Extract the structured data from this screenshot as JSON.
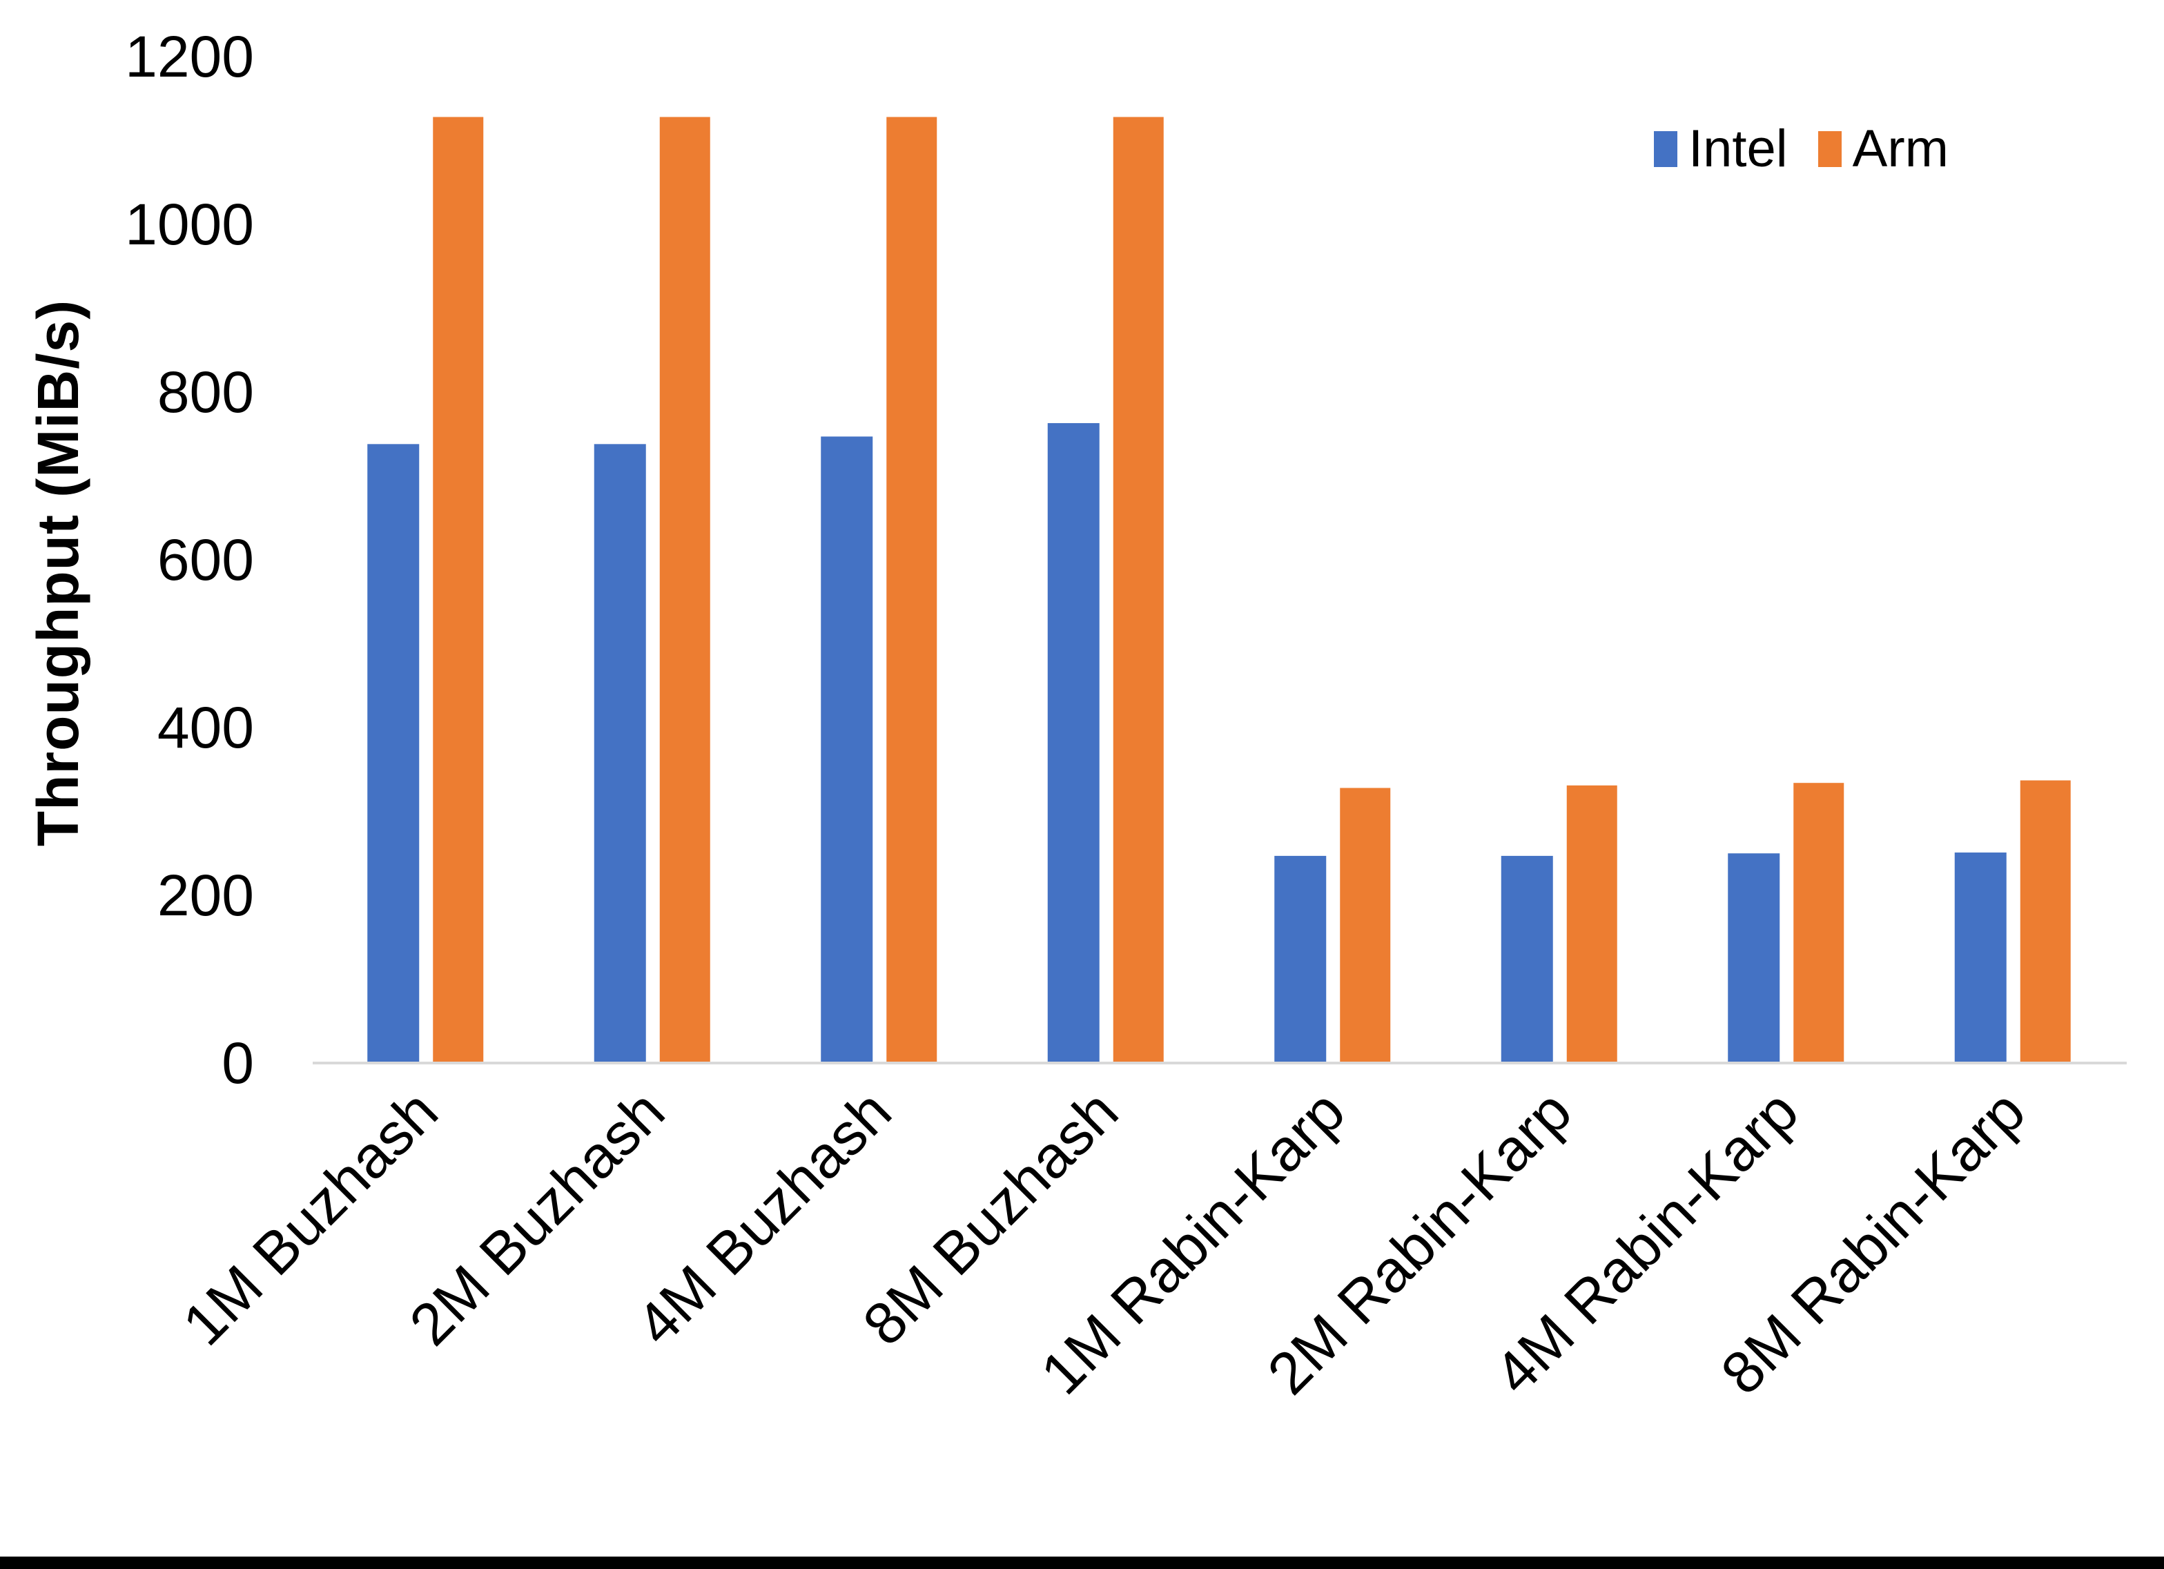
{
  "figure": {
    "background": "#FFFFFF",
    "bottom_border_color": "#000000"
  },
  "axis": {
    "y_title": "Throughput (MiB/s)",
    "y_ticks": [
      "0",
      "200",
      "400",
      "600",
      "800",
      "1000",
      "1200"
    ],
    "axis_line_color": "#D9D9D9",
    "text_color": "#000000"
  },
  "legend": {
    "items": [
      {
        "label": "Intel",
        "color": "#4472C4"
      },
      {
        "label": "Arm",
        "color": "#ED7D31"
      }
    ]
  },
  "chart_data": {
    "type": "bar",
    "title": "",
    "xlabel": "",
    "ylabel": "Throughput (MiB/s)",
    "ylim": [
      0,
      1200
    ],
    "y_step": 200,
    "grid": false,
    "legend_position": "top-right",
    "categories": [
      "1M Buzhash",
      "2M Buzhash",
      "4M Buzhash",
      "8M Buzhash",
      "1M Rabin-Karp",
      "2M Rabin-Karp",
      "4M Rabin-Karp",
      "8M Rabin-Karp"
    ],
    "series": [
      {
        "name": "Intel",
        "color": "#4472C4",
        "values": [
          738,
          738,
          747,
          763,
          247,
          247,
          250,
          251
        ]
      },
      {
        "name": "Arm",
        "color": "#ED7D31",
        "values": [
          1128,
          1128,
          1128,
          1128,
          328,
          331,
          334,
          337
        ]
      }
    ]
  }
}
